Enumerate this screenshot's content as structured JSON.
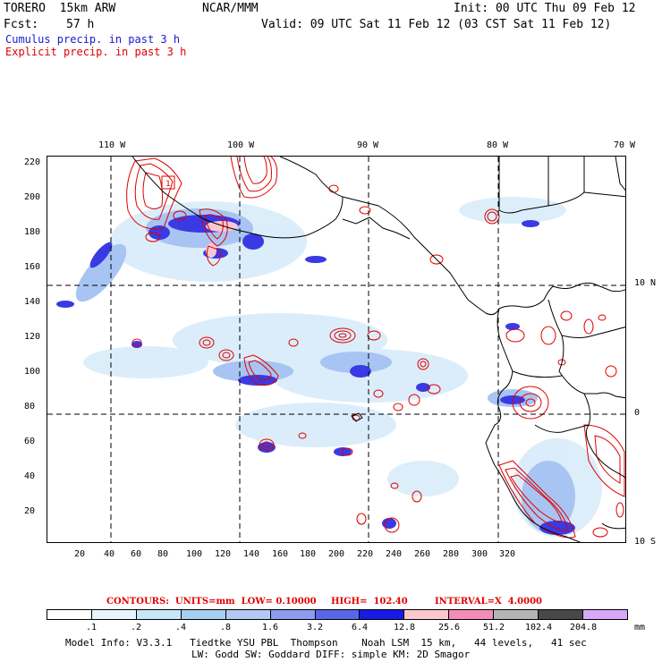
{
  "header": {
    "model": "TORERO  15km ARW",
    "org": "NCAR/MMM",
    "init": "Init: 00 UTC Thu 09 Feb 12",
    "fcst_label": "Fcst:",
    "fcst_value": "57 h",
    "valid": "Valid: 09 UTC Sat 11 Feb 12 (03 CST Sat 11 Feb 12)"
  },
  "legend": {
    "cumulus": "Cumulus precip. in past 3 h",
    "explicit": "Explicit precip. in past 3 h"
  },
  "axes": {
    "top_labels": [
      "110 W",
      "100 W",
      "90 W",
      "80 W",
      "70 W"
    ],
    "right_labels": [
      "10 N",
      "0",
      "10 S"
    ],
    "left_labels": [
      "220",
      "200",
      "180",
      "160",
      "140",
      "120",
      "100",
      "80",
      "60",
      "40",
      "20"
    ],
    "bottom_labels": [
      "20",
      "40",
      "60",
      "80",
      "100",
      "120",
      "140",
      "160",
      "180",
      "200",
      "220",
      "240",
      "260",
      "280",
      "300",
      "320"
    ]
  },
  "contours": {
    "units": "CONTOURS:  UNITS=mm  LOW= 0.10000",
    "high": "HIGH=  102.40",
    "interval": "INTERVAL=X  4.0000"
  },
  "colorbar": {
    "labels": [
      ".1",
      ".2",
      ".4",
      ".8",
      "1.6",
      "3.2",
      "6.4",
      "12.8",
      "25.6",
      "51.2",
      "102.4",
      "204.8"
    ],
    "unit": "mm",
    "colors": [
      "#ffffff",
      "#e8f4fc",
      "#c8e6f8",
      "#a8d0f0",
      "#b4c8f4",
      "#8c9cf0",
      "#5a66ea",
      "#1a1ae6",
      "#fcc8d0",
      "#f48cb8",
      "#b4b4b4",
      "#484848",
      "#d8a8f8"
    ]
  },
  "model_info": {
    "line1": "Model Info: V3.3.1   Tiedtke YSU PBL  Thompson    Noah LSM  15 km,   44 levels,   41 sec",
    "line2": "LW: Godd SW: Goddard DIFF: simple KM: 2D Smagor"
  },
  "map": {
    "contour_label": "1"
  }
}
